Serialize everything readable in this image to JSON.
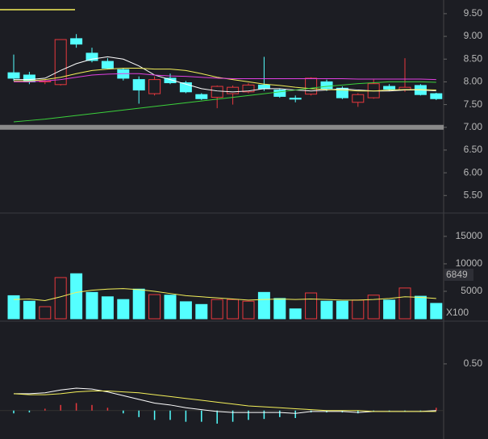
{
  "chart_data": [
    {
      "type": "candlestick",
      "up_color": "#e8383d",
      "down_color": "#54ffff",
      "open": [
        8.2,
        8.15,
        8.0,
        7.94,
        8.95,
        8.63,
        8.45,
        8.27,
        8.05,
        7.74,
        8.08,
        7.98,
        7.72,
        7.66,
        7.74,
        7.78,
        7.93,
        7.82,
        7.64,
        7.73,
        8.0,
        7.86,
        7.55,
        7.65,
        7.9,
        7.82,
        7.92,
        7.74
      ],
      "high": [
        8.6,
        8.22,
        8.05,
        8.93,
        9.05,
        8.75,
        8.52,
        8.3,
        8.12,
        8.12,
        8.18,
        8.02,
        7.75,
        7.92,
        7.92,
        7.97,
        8.55,
        7.85,
        7.7,
        8.1,
        8.05,
        7.9,
        7.75,
        8.05,
        7.95,
        8.52,
        7.95,
        7.76
      ],
      "low": [
        8.02,
        7.95,
        7.95,
        7.92,
        8.75,
        8.43,
        8.28,
        8.03,
        7.52,
        7.7,
        7.95,
        7.75,
        7.6,
        7.42,
        7.5,
        7.75,
        7.8,
        7.65,
        7.55,
        7.7,
        7.8,
        7.62,
        7.45,
        7.63,
        7.8,
        7.78,
        7.7,
        7.6
      ],
      "close": [
        8.08,
        8.0,
        8.02,
        8.93,
        8.83,
        8.47,
        8.3,
        8.08,
        7.82,
        8.05,
        7.98,
        7.78,
        7.63,
        7.9,
        7.88,
        7.93,
        7.85,
        7.68,
        7.62,
        8.08,
        7.85,
        7.65,
        7.72,
        7.96,
        7.84,
        7.88,
        7.72,
        7.63
      ],
      "lines": [
        {
          "color": "#ffffff",
          "values": [
            8.05,
            8.05,
            8.08,
            8.25,
            8.4,
            8.5,
            8.55,
            8.5,
            8.35,
            8.15,
            8.05,
            7.95,
            7.85,
            7.8,
            7.78,
            7.8,
            7.85,
            7.85,
            7.82,
            7.8,
            7.82,
            7.85,
            7.82,
            7.8,
            7.8,
            7.82,
            7.82,
            7.8
          ]
        },
        {
          "color": "#f4f05a",
          "values": [
            8.02,
            8.02,
            8.05,
            8.1,
            8.18,
            8.25,
            8.28,
            8.3,
            8.3,
            8.28,
            8.28,
            8.25,
            8.18,
            8.1,
            8.05,
            8.0,
            7.95,
            7.92,
            7.88,
            7.85,
            7.83,
            7.82,
            7.8,
            7.8,
            7.82,
            7.83,
            7.83,
            7.82
          ]
        },
        {
          "color": "#e040e0",
          "values": [
            8.0,
            8.0,
            8.02,
            8.05,
            8.1,
            8.15,
            8.17,
            8.18,
            8.18,
            8.15,
            8.13,
            8.12,
            8.1,
            8.08,
            8.07,
            8.07,
            8.07,
            8.07,
            8.07,
            8.07,
            8.07,
            8.07,
            8.06,
            8.06,
            8.06,
            8.06,
            8.06,
            8.05
          ]
        },
        {
          "color": "#3bd13b",
          "values": [
            7.12,
            7.15,
            7.18,
            7.22,
            7.26,
            7.3,
            7.34,
            7.38,
            7.42,
            7.46,
            7.5,
            7.54,
            7.58,
            7.62,
            7.66,
            7.7,
            7.74,
            7.78,
            7.82,
            7.86,
            7.9,
            7.93,
            7.96,
            7.98,
            8.0,
            8.0,
            8.0,
            7.99
          ]
        }
      ],
      "hline": 7,
      "ylim": [
        5.15,
        9.8
      ],
      "yticks": [
        {
          "value": 5.5,
          "label": "5.50"
        },
        {
          "value": 6,
          "label": "6.00"
        },
        {
          "value": 6.5,
          "label": "6.50"
        },
        {
          "value": 7,
          "label": "7.00"
        },
        {
          "value": 7.5,
          "label": "7.50"
        },
        {
          "value": 8,
          "label": "8.00"
        },
        {
          "value": 8.5,
          "label": "8.50"
        },
        {
          "value": 9,
          "label": "9.00"
        },
        {
          "value": 9.5,
          "label": "9.50"
        }
      ]
    },
    {
      "type": "volume",
      "values": [
        4200,
        3200,
        2200,
        7500,
        8200,
        4800,
        4000,
        3500,
        5400,
        4400,
        4300,
        3100,
        2600,
        3500,
        3500,
        3200,
        4800,
        3700,
        1800,
        4700,
        3200,
        3200,
        3400,
        4300,
        3400,
        5600,
        4100,
        2800
      ],
      "lines": [
        {
          "color": "#f4f05a",
          "values": [
            3500,
            3600,
            3300,
            4000,
            4800,
            5200,
            5400,
            5500,
            5300,
            5000,
            4600,
            4200,
            4000,
            3800,
            3600,
            3400,
            3500,
            3600,
            3500,
            3600,
            3500,
            3400,
            3400,
            3500,
            3700,
            4000,
            3900,
            3700
          ]
        }
      ],
      "marker_label": "6849",
      "unit_label": "X100",
      "ylim": [
        0,
        19100
      ],
      "yticks": [
        5000,
        10000,
        15000
      ]
    },
    {
      "type": "macd",
      "values": [
        -0.03,
        -0.02,
        0.02,
        0.06,
        0.08,
        0.06,
        0.03,
        -0.03,
        -0.07,
        -0.1,
        -0.1,
        -0.12,
        -0.12,
        -0.14,
        -0.12,
        -0.1,
        -0.09,
        -0.07,
        -0.08,
        -0.02,
        -0.02,
        -0.02,
        -0.03,
        -0.01,
        -0.01,
        -0.01,
        -0.01,
        0.03
      ],
      "up_color": "#e8383d",
      "down_color": "#54ffff",
      "lines": [
        {
          "color": "#ffffff",
          "values": [
            0.18,
            0.18,
            0.19,
            0.22,
            0.24,
            0.23,
            0.2,
            0.16,
            0.12,
            0.08,
            0.06,
            0.03,
            0.01,
            -0.01,
            -0.02,
            -0.02,
            -0.02,
            -0.02,
            -0.03,
            -0.01,
            -0.01,
            -0.01,
            -0.02,
            -0.01,
            -0.01,
            -0.01,
            -0.01,
            0.0
          ]
        },
        {
          "color": "#f4f05a",
          "values": [
            0.18,
            0.17,
            0.17,
            0.18,
            0.2,
            0.21,
            0.21,
            0.2,
            0.19,
            0.17,
            0.15,
            0.13,
            0.11,
            0.09,
            0.07,
            0.05,
            0.04,
            0.03,
            0.02,
            0.01,
            0.0,
            0.0,
            0.0,
            -0.01,
            -0.01,
            -0.01,
            -0.01,
            -0.01
          ]
        }
      ],
      "ylim": [
        -0.27,
        0.94
      ],
      "yticks": [
        {
          "value": 0.5,
          "label": "0.50"
        }
      ]
    }
  ]
}
